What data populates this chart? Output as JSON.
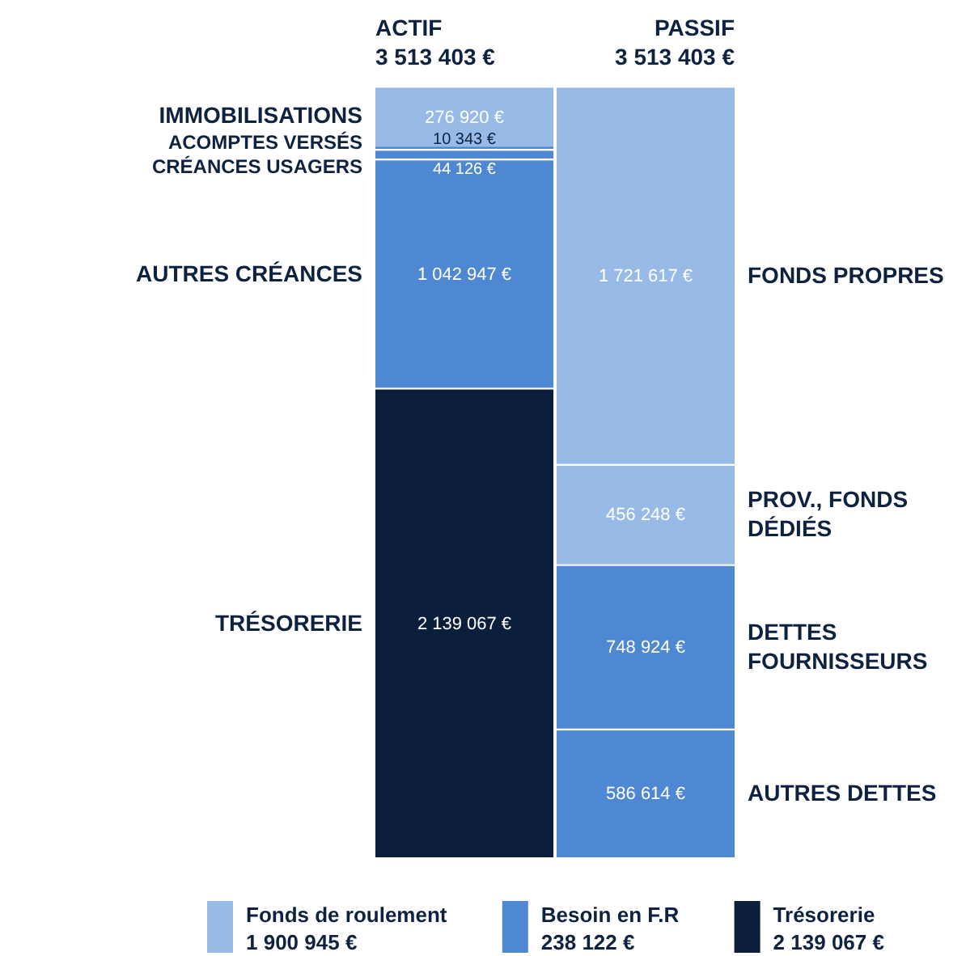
{
  "chart_data": {
    "type": "bar",
    "stacked": true,
    "categories": [
      "ACTIF",
      "PASSIF"
    ],
    "totals": [
      "3 513 403 €",
      "3 513 403 €"
    ],
    "series": [
      {
        "name": "TRÉSORERIE",
        "color": "#0b1f3d",
        "values": [
          2139067,
          null
        ],
        "value_labels": [
          "2 139 067 €",
          null
        ]
      },
      {
        "name": "AUTRES CRÉANCES",
        "color": "#4f88d2",
        "values": [
          1042947,
          null
        ],
        "value_labels": [
          "1 042 947 €",
          null
        ]
      },
      {
        "name": "CRÉANCES USAGERS",
        "color": "#4f88d2",
        "values": [
          44126,
          null
        ],
        "value_labels": [
          "44 126 €",
          null
        ]
      },
      {
        "name": "ACOMPTES VERSÉS",
        "color": "#4f88d2",
        "values": [
          10343,
          null
        ],
        "value_labels": [
          "10 343 €",
          null
        ]
      },
      {
        "name": "IMMOBILISATIONS",
        "color": "#97bae6",
        "values": [
          276920,
          null
        ],
        "value_labels": [
          "276 920 €",
          null
        ]
      },
      {
        "name": "AUTRES DETTES",
        "color": "#4f88d2",
        "values": [
          null,
          586614
        ],
        "value_labels": [
          null,
          "586 614 €"
        ]
      },
      {
        "name": "DETTES FOURNISSEURS",
        "color": "#4f88d2",
        "values": [
          null,
          748924
        ],
        "value_labels": [
          null,
          "748 924 €"
        ]
      },
      {
        "name": "PROV., FONDS DÉDIÉS",
        "color": "#97bae6",
        "values": [
          null,
          456248
        ],
        "value_labels": [
          null,
          "456 248 €"
        ]
      },
      {
        "name": "FONDS PROPRES",
        "color": "#97bae6",
        "values": [
          null,
          1721617
        ],
        "value_labels": [
          null,
          "1 721 617 €"
        ]
      }
    ],
    "annotations": [
      "Fonds de roulement\n1 900 945 €",
      "Besoin en F.R\n238 122 €",
      "Trésorerie\n2 139 067 €"
    ]
  }
}
